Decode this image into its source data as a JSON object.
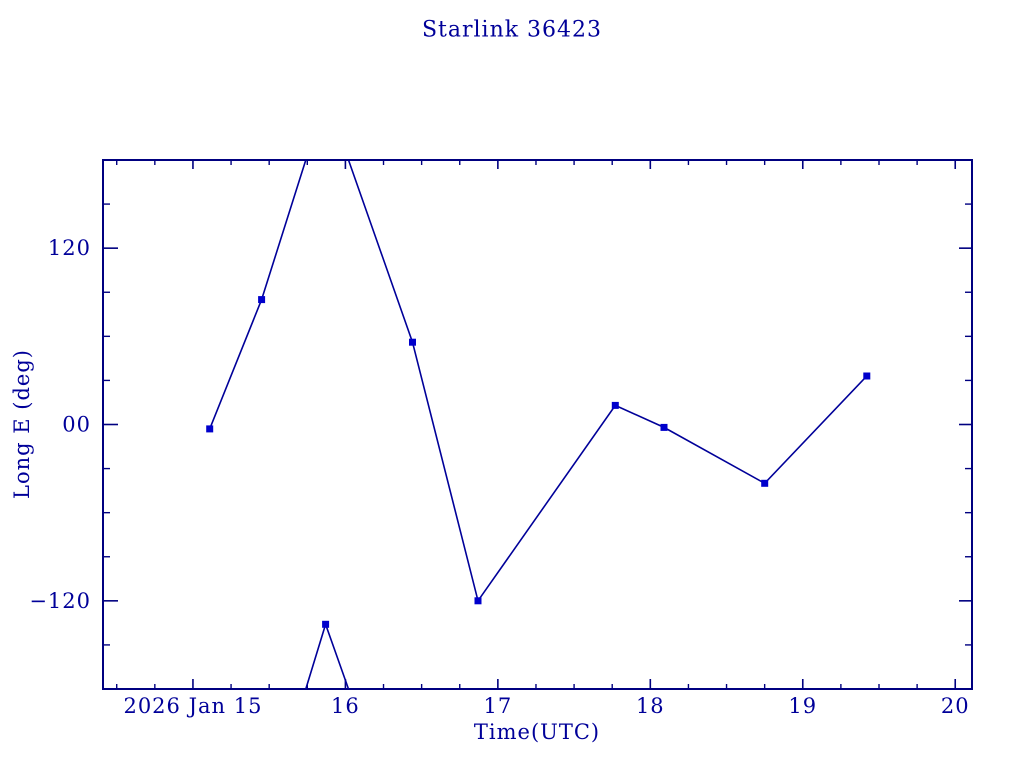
{
  "title": "Starlink 36423",
  "colors": {
    "line": "#000099",
    "frame": "#000080",
    "marker": "#0000CC",
    "text": "#000099",
    "background": "#ffffff"
  },
  "chart_data": {
    "type": "line",
    "title": "Starlink 36423",
    "xlabel": "Time(UTC)",
    "ylabel": "Long E (deg)",
    "grid": false,
    "legend": "none",
    "x_axis": {
      "unit": "day of Jan 2026",
      "range": [
        14.41,
        20.11
      ],
      "minor_step": 0.25,
      "major_ticks": [
        {
          "value": 15,
          "label": "2026 Jan 15"
        },
        {
          "value": 16,
          "label": "16"
        },
        {
          "value": 17,
          "label": "17"
        },
        {
          "value": 18,
          "label": "18"
        },
        {
          "value": 19,
          "label": "19"
        },
        {
          "value": 20,
          "label": "20"
        }
      ]
    },
    "y_axis": {
      "unit": "deg",
      "range": [
        -180,
        180
      ],
      "minor_step": 30,
      "major_ticks": [
        {
          "value": 120,
          "label": "120"
        },
        {
          "value": 0,
          "label": "00"
        },
        {
          "value": -120,
          "label": "−120"
        }
      ]
    },
    "series": [
      {
        "name": "Long E",
        "x": [
          15.11,
          15.45,
          15.87,
          16.44,
          16.87,
          17.77,
          18.09,
          18.75,
          19.42
        ],
        "y": [
          -3,
          85,
          -136,
          56,
          -120,
          13,
          -2,
          -40,
          33
        ]
      }
    ],
    "wrap": {
      "note": "longitude wraps at +/-180 deg between points 2-3 and 3-4",
      "crossings": [
        15.74,
        16.02
      ]
    },
    "segments": [
      [
        [
          15.11,
          -3
        ],
        [
          15.45,
          85
        ],
        [
          15.74,
          180
        ]
      ],
      [
        [
          15.74,
          -180
        ],
        [
          15.87,
          -136
        ],
        [
          16.02,
          -180
        ]
      ],
      [
        [
          16.02,
          180
        ],
        [
          16.44,
          56
        ],
        [
          16.87,
          -120
        ],
        [
          17.77,
          13
        ],
        [
          18.09,
          -2
        ],
        [
          18.75,
          -40
        ],
        [
          19.42,
          33
        ]
      ]
    ]
  }
}
